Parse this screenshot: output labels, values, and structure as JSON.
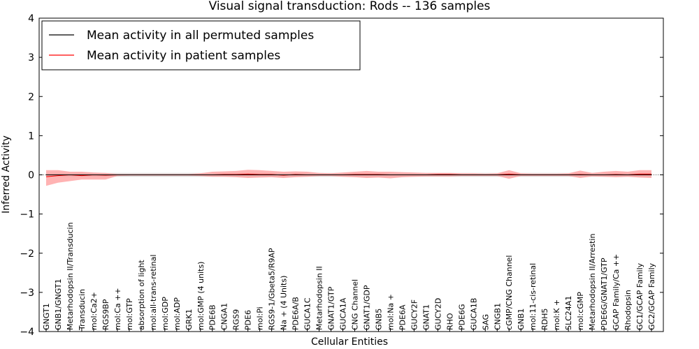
{
  "chart_data": {
    "type": "line",
    "title": "Visual signal transduction: Rods -- 136 samples",
    "xlabel": "Cellular Entities",
    "ylabel": "Inferred Activity",
    "ylim": [
      -4,
      4
    ],
    "yticks": [
      {
        "value": -4,
        "label": "−4"
      },
      {
        "value": -3,
        "label": "−3"
      },
      {
        "value": -2,
        "label": "−2"
      },
      {
        "value": -1,
        "label": "−1"
      },
      {
        "value": 0,
        "label": "0"
      },
      {
        "value": 1,
        "label": "1"
      },
      {
        "value": 2,
        "label": "2"
      },
      {
        "value": 3,
        "label": "3"
      },
      {
        "value": 4,
        "label": "4"
      }
    ],
    "grid": false,
    "legend_position": "top-left",
    "categories": [
      "GNGT1",
      "GNB1/GNGT1",
      "Metarhodopsin II/Transducin",
      "Transducin",
      "mol:Ca2+",
      "RGS9BP",
      "mol:Ca ++",
      "mol:GTP",
      "absorption of light",
      "mol:all-trans-retinal",
      "mol:GDP",
      "mol:ADP",
      "GRK1",
      "mol:GMP (4 units)",
      "PDE6B",
      "CNGA1",
      "RGS9",
      "PDE6",
      "mol:Pi",
      "RGS9-1/Gbeta5/R9AP",
      "Na + (4 Units)",
      "PDE6A/B",
      "GUCA1C",
      "Metarhodopsin II",
      "GNAT1/GTP",
      "GUCA1A",
      "CNG Channel",
      "GNAT1/GDP",
      "GNB5",
      "mol:Na +",
      "PDE6A",
      "GUCY2F",
      "GNAT1",
      "GUCY2D",
      "RHO",
      "PDE6G",
      "GUCA1B",
      "SAG",
      "CNGB1",
      "cGMP/CNG Channel",
      "GNB1",
      "mol:11-cis-retinal",
      "RDH5",
      "mol:K +",
      "SLC24A1",
      "mol:cGMP",
      "Metarhodopsin II/Arrestin",
      "PDE6G/GNAT1/GTP",
      "GCAP Family/Ca ++",
      "Rhodopsin",
      "GC1/GCAP Family",
      "GC2/GCAP Family"
    ],
    "series": [
      {
        "name": "Mean activity in all permuted samples",
        "color": "#000000",
        "values": [
          0,
          0,
          0,
          0,
          0,
          0,
          0,
          0,
          0,
          0,
          0,
          0,
          0,
          0,
          0,
          0,
          0,
          0,
          0,
          0,
          0,
          0,
          0,
          0,
          0,
          0,
          0,
          0,
          0,
          0,
          0,
          0,
          0,
          0,
          0,
          0,
          0,
          0,
          0,
          0,
          0,
          0,
          0,
          0,
          0,
          0,
          0,
          0,
          0,
          0,
          0,
          0
        ],
        "band_upper": [
          0.05,
          0.05,
          0.05,
          0.05,
          0.05,
          0.05,
          0.05,
          0.05,
          0.05,
          0.05,
          0.05,
          0.05,
          0.05,
          0.05,
          0.05,
          0.05,
          0.05,
          0.05,
          0.05,
          0.05,
          0.05,
          0.05,
          0.05,
          0.05,
          0.05,
          0.05,
          0.05,
          0.05,
          0.05,
          0.05,
          0.05,
          0.05,
          0.05,
          0.05,
          0.05,
          0.05,
          0.05,
          0.05,
          0.05,
          0.05,
          0.05,
          0.05,
          0.05,
          0.05,
          0.05,
          0.05,
          0.05,
          0.05,
          0.05,
          0.05,
          0.05,
          0.05
        ],
        "band_lower": [
          -0.05,
          -0.05,
          -0.05,
          -0.05,
          -0.05,
          -0.05,
          -0.05,
          -0.05,
          -0.05,
          -0.05,
          -0.05,
          -0.05,
          -0.05,
          -0.05,
          -0.05,
          -0.05,
          -0.05,
          -0.05,
          -0.05,
          -0.05,
          -0.05,
          -0.05,
          -0.05,
          -0.05,
          -0.05,
          -0.05,
          -0.05,
          -0.05,
          -0.05,
          -0.05,
          -0.05,
          -0.05,
          -0.05,
          -0.05,
          -0.05,
          -0.05,
          -0.05,
          -0.05,
          -0.05,
          -0.05,
          -0.05,
          -0.05,
          -0.05,
          -0.05,
          -0.05,
          -0.05,
          -0.05,
          -0.05,
          -0.05,
          -0.05,
          -0.05,
          -0.05
        ],
        "band_color": "#d9d9d9"
      },
      {
        "name": "Mean activity in patient samples",
        "color": "#ff0000",
        "values": [
          -0.05,
          -0.02,
          0,
          -0.02,
          0,
          -0.01,
          0,
          0,
          0,
          0,
          0,
          0,
          0,
          0,
          0,
          0.01,
          0.01,
          0.02,
          0.01,
          0.01,
          -0.01,
          0.01,
          0,
          0,
          0,
          0,
          0.01,
          0.01,
          0.01,
          0,
          0,
          0,
          0,
          0.01,
          0.01,
          0,
          0,
          0,
          0,
          0.02,
          0,
          0,
          0,
          0,
          0,
          0.01,
          0,
          0,
          0.01,
          0,
          0.02,
          0.02
        ],
        "band_upper": [
          0.12,
          0.12,
          0.08,
          0.08,
          0.06,
          0.05,
          0.02,
          0.02,
          0.02,
          0.02,
          0.02,
          0.02,
          0.02,
          0.04,
          0.08,
          0.09,
          0.1,
          0.13,
          0.12,
          0.1,
          0.08,
          0.09,
          0.08,
          0.05,
          0.04,
          0.06,
          0.08,
          0.1,
          0.08,
          0.08,
          0.07,
          0.06,
          0.05,
          0.05,
          0.05,
          0.04,
          0.04,
          0.03,
          0.04,
          0.12,
          0.04,
          0.03,
          0.03,
          0.03,
          0.04,
          0.11,
          0.05,
          0.08,
          0.1,
          0.08,
          0.12,
          0.12
        ],
        "band_lower": [
          -0.28,
          -0.2,
          -0.16,
          -0.12,
          -0.12,
          -0.12,
          -0.03,
          -0.02,
          -0.02,
          -0.02,
          -0.02,
          -0.02,
          -0.02,
          -0.03,
          -0.05,
          -0.05,
          -0.06,
          -0.08,
          -0.07,
          -0.06,
          -0.08,
          -0.06,
          -0.05,
          -0.03,
          -0.03,
          -0.05,
          -0.06,
          -0.08,
          -0.07,
          -0.09,
          -0.06,
          -0.05,
          -0.04,
          -0.04,
          -0.04,
          -0.03,
          -0.03,
          -0.03,
          -0.03,
          -0.1,
          -0.03,
          -0.03,
          -0.03,
          -0.03,
          -0.03,
          -0.08,
          -0.04,
          -0.05,
          -0.06,
          -0.05,
          -0.07,
          -0.08
        ],
        "band_color": "#ff9999"
      }
    ]
  }
}
